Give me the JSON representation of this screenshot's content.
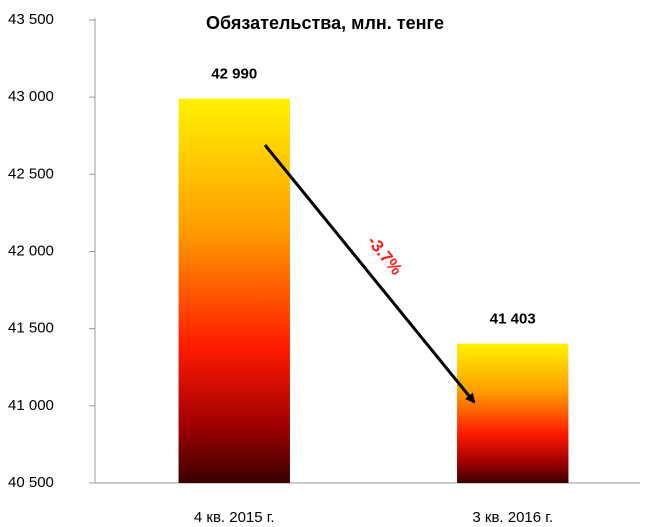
{
  "chart_data": {
    "type": "bar",
    "title": "Обязательства, млн. тенге",
    "categories": [
      "4 кв. 2015 г.",
      "3 кв. 2016 г."
    ],
    "values": [
      42990,
      41403
    ],
    "value_labels": [
      "42 990",
      "41 403"
    ],
    "annotation": "-3.7%",
    "ylim": [
      40500,
      43500
    ],
    "yticks": [
      {
        "value": 40500,
        "label": "40 500"
      },
      {
        "value": 41000,
        "label": "41 000"
      },
      {
        "value": 41500,
        "label": "41 500"
      },
      {
        "value": 42000,
        "label": "42 000"
      },
      {
        "value": 42500,
        "label": "42 500"
      },
      {
        "value": 43000,
        "label": "43 000"
      },
      {
        "value": 43500,
        "label": "43 500"
      }
    ],
    "grid": false
  }
}
